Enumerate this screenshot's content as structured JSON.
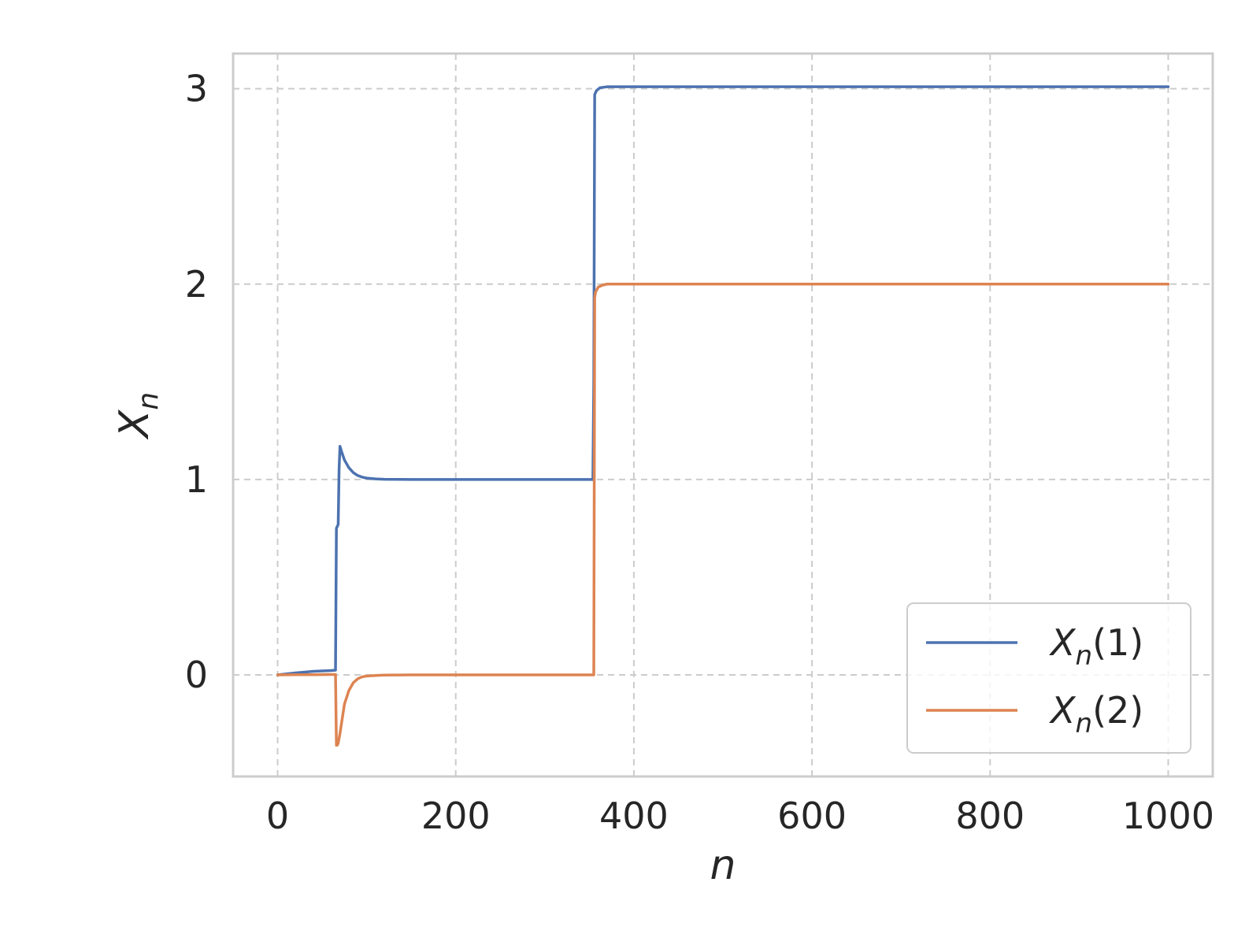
{
  "chart_data": {
    "type": "line",
    "xlabel_base": "n",
    "ylabel_base": "X",
    "ylabel_sub": "n",
    "xlim": [
      -50,
      1050
    ],
    "ylim": [
      -0.52,
      3.18
    ],
    "xticks": [
      0,
      200,
      400,
      600,
      800,
      1000
    ],
    "xtick_labels": [
      "0",
      "200",
      "400",
      "600",
      "800",
      "1000"
    ],
    "yticks": [
      0,
      1,
      2,
      3
    ],
    "ytick_labels": [
      "0",
      "1",
      "2",
      "3"
    ],
    "grid": true,
    "grid_style": "dashed",
    "legend_position": "lower-right",
    "series": [
      {
        "name_base": "X",
        "name_sub": "n",
        "name_arg": "(1)",
        "color": "#4c72b0",
        "x": [
          0,
          20,
          40,
          60,
          65,
          66,
          68,
          69,
          70,
          72,
          75,
          80,
          85,
          90,
          95,
          100,
          110,
          120,
          150,
          200,
          300,
          354,
          355,
          356,
          358,
          362,
          370,
          380,
          400,
          600,
          800,
          1000
        ],
        "y": [
          0,
          0.01,
          0.018,
          0.022,
          0.024,
          0.75,
          0.77,
          1.05,
          1.17,
          1.14,
          1.1,
          1.06,
          1.035,
          1.02,
          1.012,
          1.007,
          1.003,
          1.001,
          1.0,
          1.0,
          1.0,
          1.0,
          1.5,
          2.97,
          2.99,
          3.005,
          3.01,
          3.01,
          3.01,
          3.01,
          3.01,
          3.01
        ]
      },
      {
        "name_base": "X",
        "name_sub": "n",
        "name_arg": "(2)",
        "color": "#dd8452",
        "x": [
          0,
          20,
          40,
          60,
          65,
          66,
          67,
          68,
          70,
          72,
          75,
          80,
          85,
          90,
          95,
          100,
          110,
          120,
          150,
          200,
          300,
          355,
          356,
          357,
          360,
          365,
          370,
          380,
          400,
          600,
          800,
          1000
        ],
        "y": [
          0,
          0.001,
          0.001,
          0.002,
          0.002,
          -0.36,
          -0.36,
          -0.35,
          -0.3,
          -0.24,
          -0.15,
          -0.08,
          -0.04,
          -0.02,
          -0.01,
          -0.006,
          -0.003,
          -0.001,
          0.0,
          0.0,
          0.0,
          0.0,
          1.93,
          1.96,
          1.985,
          1.995,
          2.0,
          2.0,
          2.0,
          2.0,
          2.0,
          2.0
        ]
      }
    ]
  }
}
